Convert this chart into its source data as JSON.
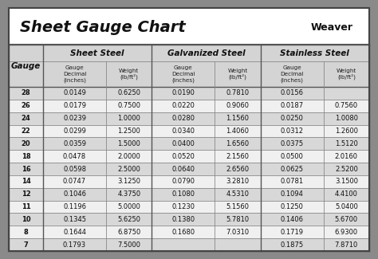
{
  "title": "Sheet Gauge Chart",
  "bg_outer": "#8a8a8a",
  "bg_white": "#ffffff",
  "bg_header_section": "#d4d4d4",
  "bg_row_odd": "#d8d8d8",
  "bg_row_even": "#f0f0f0",
  "gauges": [
    28,
    26,
    24,
    22,
    20,
    18,
    16,
    14,
    12,
    11,
    10,
    8,
    7
  ],
  "sheet_steel_decimal": [
    "0.0149",
    "0.0179",
    "0.0239",
    "0.0299",
    "0.0359",
    "0.0478",
    "0.0598",
    "0.0747",
    "0.1046",
    "0.1196",
    "0.1345",
    "0.1644",
    "0.1793"
  ],
  "sheet_steel_weight": [
    "0.6250",
    "0.7500",
    "1.0000",
    "1.2500",
    "1.5000",
    "2.0000",
    "2.5000",
    "3.1250",
    "4.3750",
    "5.0000",
    "5.6250",
    "6.8750",
    "7.5000"
  ],
  "galv_decimal": [
    "0.0190",
    "0.0220",
    "0.0280",
    "0.0340",
    "0.0400",
    "0.0520",
    "0.0640",
    "0.0790",
    "0.1080",
    "0.1230",
    "0.1380",
    "0.1680",
    ""
  ],
  "galv_weight": [
    "0.7810",
    "0.9060",
    "1.1560",
    "1.4060",
    "1.6560",
    "2.1560",
    "2.6560",
    "3.2810",
    "4.5310",
    "5.1560",
    "5.7810",
    "7.0310",
    ""
  ],
  "ss_decimal": [
    "0.0156",
    "0.0187",
    "0.0250",
    "0.0312",
    "0.0375",
    "0.0500",
    "0.0625",
    "0.0781",
    "0.1094",
    "0.1250",
    "0.1406",
    "0.1719",
    "0.1875"
  ],
  "ss_weight": [
    "",
    "0.7560",
    "1.0080",
    "1.2600",
    "1.5120",
    "2.0160",
    "2.5200",
    "3.1500",
    "4.4100",
    "5.0400",
    "5.6700",
    "6.9300",
    "7.8710"
  ],
  "fig_w": 4.74,
  "fig_h": 3.25,
  "dpi": 100
}
